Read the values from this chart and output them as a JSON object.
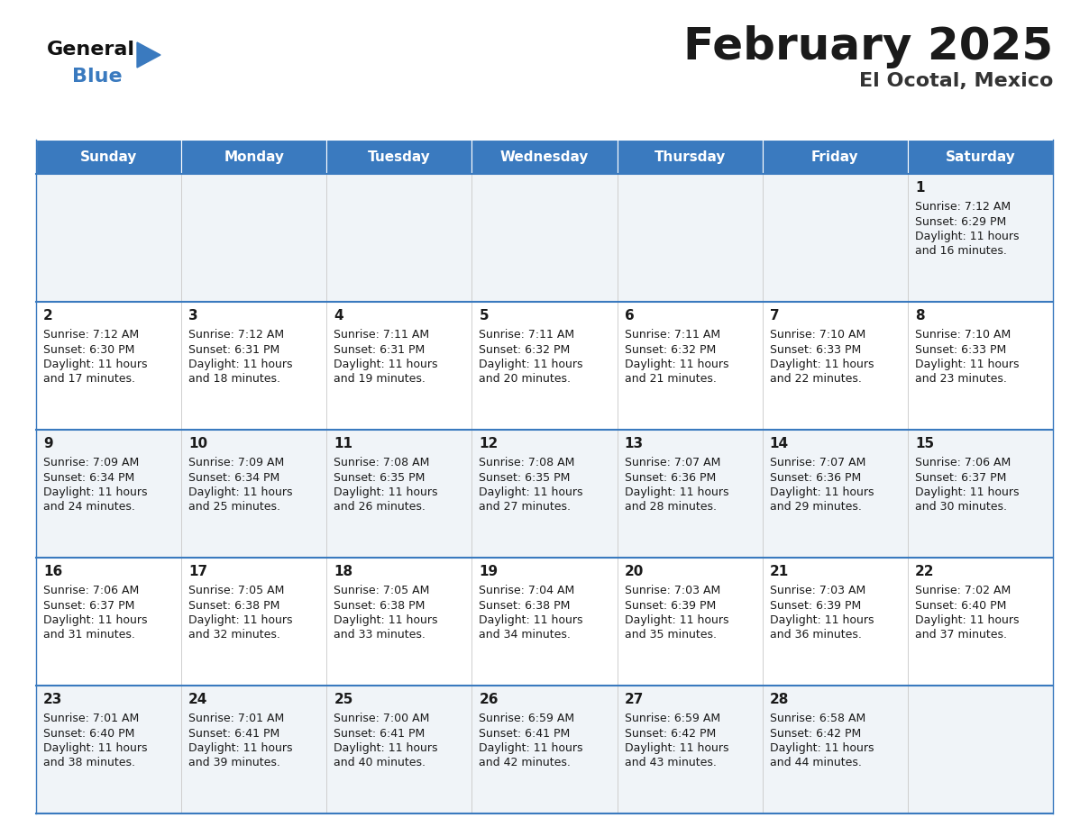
{
  "title": "February 2025",
  "subtitle": "El Ocotal, Mexico",
  "header_color": "#3a7abf",
  "header_text_color": "#ffffff",
  "cell_bg_even": "#f0f4f8",
  "cell_bg_odd": "#ffffff",
  "border_color": "#3a7abf",
  "day_headers": [
    "Sunday",
    "Monday",
    "Tuesday",
    "Wednesday",
    "Thursday",
    "Friday",
    "Saturday"
  ],
  "title_color": "#1a1a1a",
  "subtitle_color": "#333333",
  "day_number_color": "#1a1a1a",
  "info_color": "#1a1a1a",
  "calendar": [
    [
      null,
      null,
      null,
      null,
      null,
      null,
      {
        "day": 1,
        "sunrise": "7:12 AM",
        "sunset": "6:29 PM",
        "daylight_hours": 11,
        "daylight_minutes": 16
      }
    ],
    [
      {
        "day": 2,
        "sunrise": "7:12 AM",
        "sunset": "6:30 PM",
        "daylight_hours": 11,
        "daylight_minutes": 17
      },
      {
        "day": 3,
        "sunrise": "7:12 AM",
        "sunset": "6:31 PM",
        "daylight_hours": 11,
        "daylight_minutes": 18
      },
      {
        "day": 4,
        "sunrise": "7:11 AM",
        "sunset": "6:31 PM",
        "daylight_hours": 11,
        "daylight_minutes": 19
      },
      {
        "day": 5,
        "sunrise": "7:11 AM",
        "sunset": "6:32 PM",
        "daylight_hours": 11,
        "daylight_minutes": 20
      },
      {
        "day": 6,
        "sunrise": "7:11 AM",
        "sunset": "6:32 PM",
        "daylight_hours": 11,
        "daylight_minutes": 21
      },
      {
        "day": 7,
        "sunrise": "7:10 AM",
        "sunset": "6:33 PM",
        "daylight_hours": 11,
        "daylight_minutes": 22
      },
      {
        "day": 8,
        "sunrise": "7:10 AM",
        "sunset": "6:33 PM",
        "daylight_hours": 11,
        "daylight_minutes": 23
      }
    ],
    [
      {
        "day": 9,
        "sunrise": "7:09 AM",
        "sunset": "6:34 PM",
        "daylight_hours": 11,
        "daylight_minutes": 24
      },
      {
        "day": 10,
        "sunrise": "7:09 AM",
        "sunset": "6:34 PM",
        "daylight_hours": 11,
        "daylight_minutes": 25
      },
      {
        "day": 11,
        "sunrise": "7:08 AM",
        "sunset": "6:35 PM",
        "daylight_hours": 11,
        "daylight_minutes": 26
      },
      {
        "day": 12,
        "sunrise": "7:08 AM",
        "sunset": "6:35 PM",
        "daylight_hours": 11,
        "daylight_minutes": 27
      },
      {
        "day": 13,
        "sunrise": "7:07 AM",
        "sunset": "6:36 PM",
        "daylight_hours": 11,
        "daylight_minutes": 28
      },
      {
        "day": 14,
        "sunrise": "7:07 AM",
        "sunset": "6:36 PM",
        "daylight_hours": 11,
        "daylight_minutes": 29
      },
      {
        "day": 15,
        "sunrise": "7:06 AM",
        "sunset": "6:37 PM",
        "daylight_hours": 11,
        "daylight_minutes": 30
      }
    ],
    [
      {
        "day": 16,
        "sunrise": "7:06 AM",
        "sunset": "6:37 PM",
        "daylight_hours": 11,
        "daylight_minutes": 31
      },
      {
        "day": 17,
        "sunrise": "7:05 AM",
        "sunset": "6:38 PM",
        "daylight_hours": 11,
        "daylight_minutes": 32
      },
      {
        "day": 18,
        "sunrise": "7:05 AM",
        "sunset": "6:38 PM",
        "daylight_hours": 11,
        "daylight_minutes": 33
      },
      {
        "day": 19,
        "sunrise": "7:04 AM",
        "sunset": "6:38 PM",
        "daylight_hours": 11,
        "daylight_minutes": 34
      },
      {
        "day": 20,
        "sunrise": "7:03 AM",
        "sunset": "6:39 PM",
        "daylight_hours": 11,
        "daylight_minutes": 35
      },
      {
        "day": 21,
        "sunrise": "7:03 AM",
        "sunset": "6:39 PM",
        "daylight_hours": 11,
        "daylight_minutes": 36
      },
      {
        "day": 22,
        "sunrise": "7:02 AM",
        "sunset": "6:40 PM",
        "daylight_hours": 11,
        "daylight_minutes": 37
      }
    ],
    [
      {
        "day": 23,
        "sunrise": "7:01 AM",
        "sunset": "6:40 PM",
        "daylight_hours": 11,
        "daylight_minutes": 38
      },
      {
        "day": 24,
        "sunrise": "7:01 AM",
        "sunset": "6:41 PM",
        "daylight_hours": 11,
        "daylight_minutes": 39
      },
      {
        "day": 25,
        "sunrise": "7:00 AM",
        "sunset": "6:41 PM",
        "daylight_hours": 11,
        "daylight_minutes": 40
      },
      {
        "day": 26,
        "sunrise": "6:59 AM",
        "sunset": "6:41 PM",
        "daylight_hours": 11,
        "daylight_minutes": 42
      },
      {
        "day": 27,
        "sunrise": "6:59 AM",
        "sunset": "6:42 PM",
        "daylight_hours": 11,
        "daylight_minutes": 43
      },
      {
        "day": 28,
        "sunrise": "6:58 AM",
        "sunset": "6:42 PM",
        "daylight_hours": 11,
        "daylight_minutes": 44
      },
      null
    ]
  ],
  "logo_text_general": "General",
  "logo_text_blue": "Blue",
  "logo_triangle_color": "#3a7abf"
}
